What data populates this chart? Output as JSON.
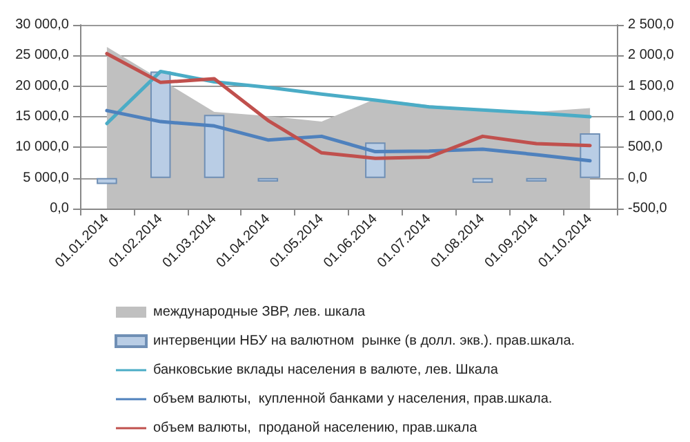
{
  "chart_data": {
    "type": "line",
    "categories": [
      "01.01.2014",
      "01.02.2014",
      "01.03.2014",
      "01.04.2014",
      "01.05.2014",
      "01.06.2014",
      "01.07.2014",
      "01.08.2014",
      "01.09.2014",
      "01.10.2014"
    ],
    "series": [
      {
        "name": "международные ЗВР, лев. шкала",
        "type": "area",
        "color": "#c0c0c0",
        "values": [
          26400,
          null,
          15800,
          15100,
          14200,
          17900,
          16900,
          16200,
          15800,
          16400
        ]
      },
      {
        "name": "интервенции НБУ на валютном  рынке (в долл. экв.). прав.шкала.",
        "type": "bar",
        "axis": "y2",
        "color": "#b9cde5",
        "values": [
          -100,
          1740,
          1030,
          -60,
          null,
          580,
          null,
          -80,
          -60,
          730
        ]
      },
      {
        "name": "банковськие вклады населения в валюте, лев. Шкала",
        "color": "#4bacc6",
        "values": [
          13900,
          22400,
          20700,
          19800,
          18700,
          17700,
          16600,
          16100,
          15600,
          15000
        ]
      },
      {
        "name": "объем валюты,  купленной банками у населения, прав.шкала.",
        "axis": "y2",
        "color": "#4f81bd",
        "values": [
          1100,
          920,
          850,
          620,
          680,
          430,
          440,
          470,
          380,
          280
        ]
      },
      {
        "name": "объем валюты,  проданой населению, прав.шкала",
        "axis": "y2",
        "color": "#c0504d",
        "values": [
          2030,
          1560,
          1620,
          940,
          410,
          320,
          340,
          680,
          560,
          530
        ]
      }
    ],
    "ylim": [
      0,
      30000
    ],
    "yticks": [
      {
        "value": 0,
        "label": "0,0"
      },
      {
        "value": 5000,
        "label": "5 000,0"
      },
      {
        "value": 10000,
        "label": "10 000,0"
      },
      {
        "value": 15000,
        "label": "15 000,0"
      },
      {
        "value": 20000,
        "label": "20 000,0"
      },
      {
        "value": 25000,
        "label": "25 000,0"
      },
      {
        "value": 30000,
        "label": "30 000,0"
      }
    ],
    "y2lim": [
      -500,
      2500
    ],
    "y2ticks": [
      {
        "value": -500,
        "label": "-500,0"
      },
      {
        "value": 0,
        "label": "0,0"
      },
      {
        "value": 500,
        "label": "500,0"
      },
      {
        "value": 1000,
        "label": "1 000,0"
      },
      {
        "value": 1500,
        "label": "1 500,0"
      },
      {
        "value": 2000,
        "label": "2 000,0"
      },
      {
        "value": 2500,
        "label": "2 500,0"
      }
    ],
    "grid": "y",
    "legend": "bottom",
    "marker": "none",
    "line_style": "solid"
  }
}
